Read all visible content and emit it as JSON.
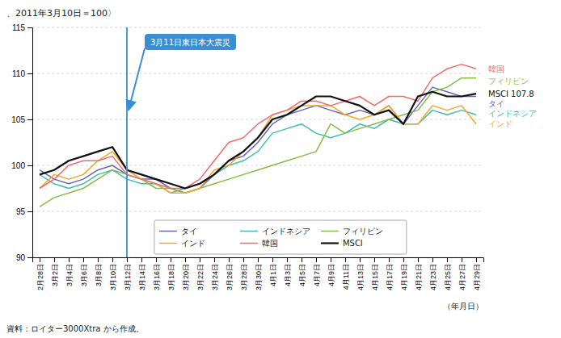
{
  "chart_data": {
    "type": "line",
    "title": "、2011年3月10日＝100〉",
    "x_label": "（年月日）",
    "source": "資料：ロイター3000Xtra から作成。",
    "categories": [
      "2月28日",
      "3月2日",
      "3月4日",
      "3月6日",
      "3月8日",
      "3月10日",
      "3月12日",
      "3月14日",
      "3月16日",
      "3月18日",
      "3月20日",
      "3月22日",
      "3月24日",
      "3月26日",
      "3月28日",
      "3月30日",
      "4月1日",
      "4月3日",
      "4月5日",
      "4月7日",
      "4月9日",
      "4月11日",
      "4月13日",
      "4月15日",
      "4月17日",
      "4月19日",
      "4月21日",
      "4月23日",
      "4月25日",
      "4月27日",
      "4月29日"
    ],
    "series": [
      {
        "name": "タイ",
        "color": "#6666bb",
        "values": [
          99.5,
          98.5,
          98.0,
          98.5,
          99.5,
          100.0,
          99.0,
          98.5,
          98.5,
          97.5,
          97.0,
          97.5,
          99.0,
          100.5,
          101.0,
          102.5,
          104.5,
          105.5,
          106.0,
          106.5,
          106.0,
          105.5,
          106.0,
          105.5,
          106.5,
          104.5,
          106.5,
          108.5,
          108.0,
          107.5,
          107.5
        ]
      },
      {
        "name": "インドネシア",
        "color": "#3dbdb1",
        "values": [
          99.0,
          98.0,
          97.5,
          98.0,
          99.0,
          99.5,
          98.5,
          98.0,
          98.0,
          97.0,
          97.5,
          98.0,
          99.0,
          100.0,
          100.5,
          101.5,
          103.5,
          104.0,
          104.5,
          103.5,
          103.0,
          103.5,
          104.5,
          104.0,
          105.0,
          104.5,
          104.5,
          106.0,
          105.5,
          106.0,
          105.5
        ]
      },
      {
        "name": "フィリピン",
        "color": "#88bb44",
        "values": [
          95.5,
          96.5,
          97.0,
          97.5,
          98.5,
          99.5,
          99.0,
          98.5,
          97.5,
          97.5,
          97.0,
          97.5,
          98.0,
          98.5,
          99.0,
          99.5,
          100.0,
          100.5,
          101.0,
          101.5,
          104.5,
          103.5,
          104.0,
          104.5,
          105.0,
          105.5,
          106.0,
          108.0,
          108.5,
          109.5,
          109.5
        ]
      },
      {
        "name": "インド",
        "color": "#f5a623",
        "values": [
          97.5,
          99.0,
          98.5,
          99.0,
          100.5,
          101.5,
          99.5,
          98.5,
          98.0,
          97.0,
          97.0,
          97.5,
          99.5,
          100.0,
          101.5,
          103.0,
          105.5,
          106.0,
          106.5,
          106.5,
          106.5,
          105.5,
          105.0,
          105.5,
          106.5,
          104.5,
          104.5,
          106.5,
          106.0,
          106.5,
          104.5
        ]
      },
      {
        "name": "韓国",
        "color": "#f06c6c",
        "values": [
          97.5,
          98.5,
          100.0,
          100.5,
          100.5,
          101.0,
          99.0,
          98.5,
          98.0,
          97.5,
          97.5,
          98.5,
          100.5,
          102.5,
          103.0,
          104.5,
          105.5,
          106.0,
          107.0,
          107.0,
          106.5,
          107.0,
          107.5,
          106.5,
          107.5,
          107.5,
          107.0,
          109.5,
          110.5,
          111.0,
          110.5
        ]
      },
      {
        "name": "MSCI",
        "color": "#111111",
        "values": [
          99.0,
          99.5,
          100.5,
          101.0,
          101.5,
          102.0,
          99.5,
          99.0,
          98.5,
          98.0,
          97.5,
          98.0,
          99.0,
          100.5,
          101.5,
          103.0,
          105.0,
          105.5,
          106.5,
          107.5,
          107.5,
          107.0,
          106.5,
          105.5,
          106.0,
          104.5,
          107.5,
          108.0,
          107.5,
          107.5,
          107.8
        ]
      }
    ],
    "annotations": [
      {
        "text": "3月11日東日本大震災",
        "x": "3月12日",
        "color": "#3a8fd4"
      },
      {
        "text": "韓国",
        "y": 110.5,
        "color": "#f06c6c"
      },
      {
        "text": "フィリピン",
        "y": 109.2,
        "color": "#88bb44"
      },
      {
        "text": "MSCI 107.8",
        "y": 107.8,
        "color": "#111111"
      },
      {
        "text": "タイ",
        "y": 107.2,
        "color": "#6666bb"
      },
      {
        "text": "インドネシア",
        "y": 105.8,
        "color": "#3dbdb1"
      },
      {
        "text": "インド",
        "y": 104.5,
        "color": "#f5a623"
      }
    ],
    "ylim": [
      90,
      115
    ],
    "yticks": [
      90,
      95,
      100,
      105,
      110,
      115
    ],
    "grid": true,
    "legend": "bottom"
  }
}
